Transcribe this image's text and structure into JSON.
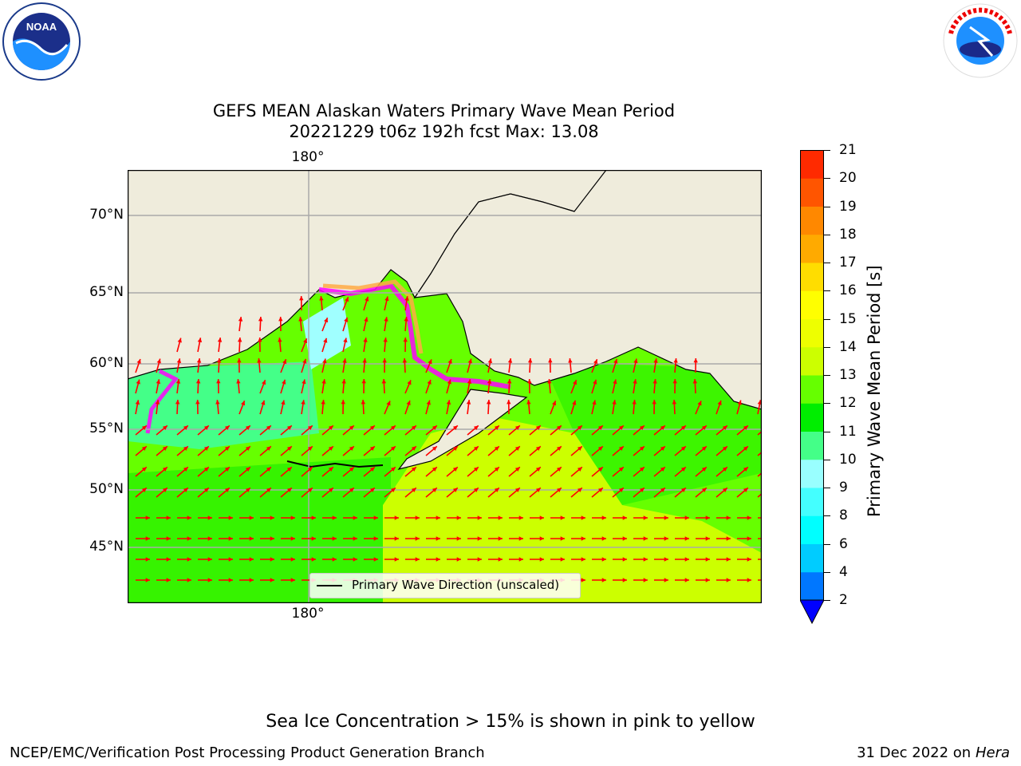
{
  "logos": {
    "left": "NOAA",
    "left_ring": "NATIONAL OCEANIC AND ATMOSPHERIC ADMINISTRATION · U.S. DEPARTMENT OF COMMERCE",
    "right_ring": "NATIONAL WEATHER SERVICE"
  },
  "title": {
    "line1": "GEFS MEAN Alaskan Waters Primary Wave Mean Period",
    "line2": "20221229 t06z 192h fcst   Max: 13.08"
  },
  "map": {
    "lon_label_top": "180°",
    "lon_label_bottom": "180°",
    "lat_labels": [
      "70°N",
      "65°N",
      "60°N",
      "55°N",
      "50°N",
      "45°N"
    ],
    "legend_label": "Primary Wave Direction (unscaled)",
    "colors": {
      "land": "#efecdc",
      "ocean_dark": "#00e600",
      "ocean_mid": "#66ff00",
      "ocean_yellow": "#ccff00",
      "ocean_cyan": "#a0ffff",
      "ocean_seafoam": "#44ff88",
      "arrow": "#ff0000",
      "ice_pink": "#ff00ff",
      "ice_orange": "#ffaa44"
    }
  },
  "colorbar": {
    "title": "Primary Wave Mean Period [s]",
    "ticks": [
      "2",
      "4",
      "6",
      "8",
      "9",
      "10",
      "11",
      "12",
      "13",
      "14",
      "15",
      "16",
      "17",
      "18",
      "19",
      "20",
      "21"
    ],
    "colors": [
      "#0000ff",
      "#0077ff",
      "#00ccff",
      "#00ffff",
      "#44ffff",
      "#99ffff",
      "#44ff88",
      "#00ee00",
      "#66ff00",
      "#ccff00",
      "#eeff00",
      "#ffff00",
      "#ffdd00",
      "#ffaa00",
      "#ff8800",
      "#ff5500",
      "#ff2a00",
      "#ff0000"
    ]
  },
  "note": "Sea Ice Concentration > 15% is shown in pink to yellow",
  "footer": {
    "left": "NCEP/EMC/Verification Post Processing Product Generation Branch",
    "right_date": "31 Dec 2022 on",
    "right_host": "Hera"
  }
}
